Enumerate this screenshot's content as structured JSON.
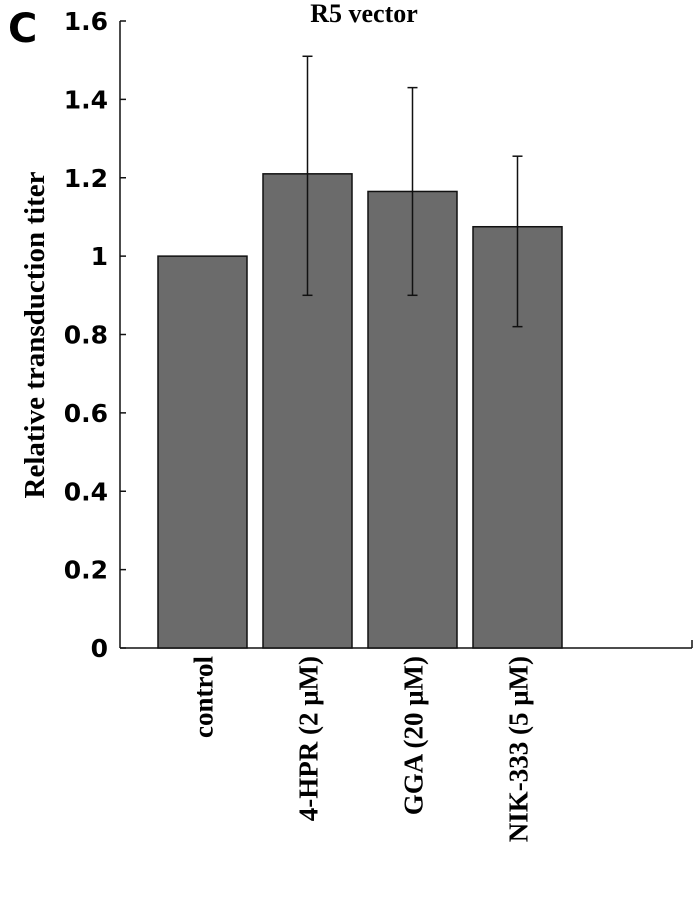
{
  "panel_label": "C",
  "chart_data": {
    "type": "bar",
    "title": "R5 vector",
    "xlabel": "",
    "ylabel": "Relative transduction titer",
    "ylim": [
      0,
      1.6
    ],
    "yticks": [
      0,
      0.2,
      0.4,
      0.6,
      0.8,
      1,
      1.2,
      1.4,
      1.6
    ],
    "ytick_labels": [
      "0",
      "0.2",
      "0.4",
      "0.6",
      "0.8",
      "1",
      "1.2",
      "1.4",
      "1.6"
    ],
    "categories": [
      "control",
      "4-HPR (2 μM)",
      "GGA (20 μM)",
      "NIK-333 (5 μM)"
    ],
    "values": [
      1.0,
      1.21,
      1.165,
      1.075
    ],
    "error_bars": [
      null,
      {
        "low": 0.9,
        "high": 1.51
      },
      {
        "low": 0.9,
        "high": 1.43
      },
      {
        "low": 0.82,
        "high": 1.255
      }
    ],
    "bar_color": "#6b6b6b",
    "grid": false,
    "legend": null
  }
}
